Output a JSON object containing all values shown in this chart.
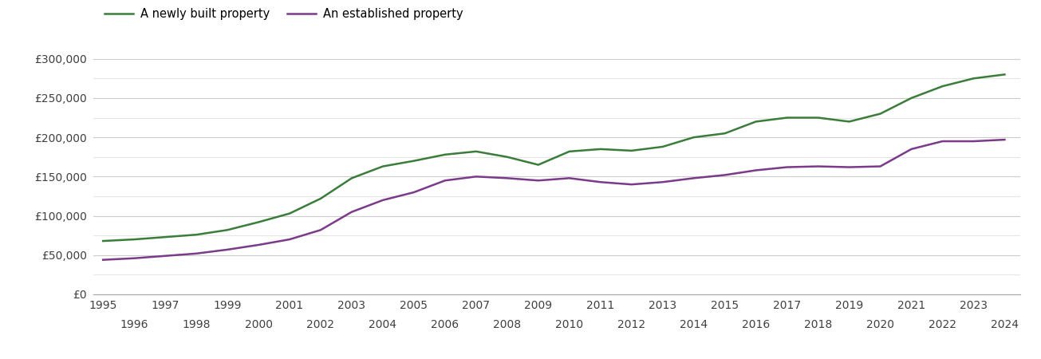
{
  "newly_built": {
    "years": [
      1995,
      1996,
      1997,
      1998,
      1999,
      2000,
      2001,
      2002,
      2003,
      2004,
      2005,
      2006,
      2007,
      2008,
      2009,
      2010,
      2011,
      2012,
      2013,
      2014,
      2015,
      2016,
      2017,
      2018,
      2019,
      2020,
      2021,
      2022,
      2023,
      2024
    ],
    "values": [
      68000,
      70000,
      73000,
      76000,
      82000,
      92000,
      103000,
      122000,
      148000,
      163000,
      170000,
      178000,
      182000,
      175000,
      165000,
      182000,
      185000,
      183000,
      188000,
      200000,
      205000,
      220000,
      225000,
      225000,
      220000,
      230000,
      250000,
      265000,
      275000,
      280000
    ]
  },
  "established": {
    "years": [
      1995,
      1996,
      1997,
      1998,
      1999,
      2000,
      2001,
      2002,
      2003,
      2004,
      2005,
      2006,
      2007,
      2008,
      2009,
      2010,
      2011,
      2012,
      2013,
      2014,
      2015,
      2016,
      2017,
      2018,
      2019,
      2020,
      2021,
      2022,
      2023,
      2024
    ],
    "values": [
      44000,
      46000,
      49000,
      52000,
      57000,
      63000,
      70000,
      82000,
      105000,
      120000,
      130000,
      145000,
      150000,
      148000,
      145000,
      148000,
      143000,
      140000,
      143000,
      148000,
      152000,
      158000,
      162000,
      163000,
      162000,
      163000,
      185000,
      195000,
      195000,
      197000
    ]
  },
  "newly_built_color": "#3a7d3a",
  "established_color": "#7b3a8a",
  "legend_labels": [
    "A newly built property",
    "An established property"
  ],
  "ylim": [
    0,
    320000
  ],
  "yticks_major": [
    0,
    50000,
    100000,
    150000,
    200000,
    250000,
    300000
  ],
  "ytick_labels": [
    "£0",
    "£50,000",
    "£100,000",
    "£150,000",
    "£200,000",
    "£250,000",
    "£300,000"
  ],
  "yticks_minor": [
    25000,
    75000,
    125000,
    175000,
    225000,
    275000
  ],
  "xlim": [
    1994.7,
    2024.5
  ],
  "xticks_odd": [
    1995,
    1997,
    1999,
    2001,
    2003,
    2005,
    2007,
    2009,
    2011,
    2013,
    2015,
    2017,
    2019,
    2021,
    2023
  ],
  "xticks_even": [
    1996,
    1998,
    2000,
    2002,
    2004,
    2006,
    2008,
    2010,
    2012,
    2014,
    2016,
    2018,
    2020,
    2022,
    2024
  ],
  "line_width": 1.8,
  "background_color": "#ffffff",
  "grid_major_color": "#cccccc",
  "grid_minor_color": "#e5e5e5",
  "text_color": "#404040",
  "spine_color": "#aaaaaa"
}
